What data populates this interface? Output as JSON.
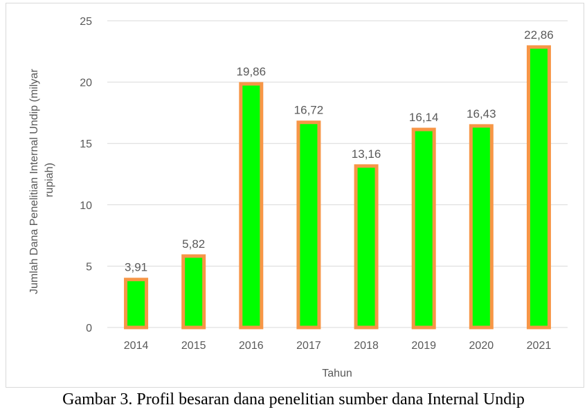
{
  "chart_data": {
    "type": "bar",
    "categories": [
      "2014",
      "2015",
      "2016",
      "2017",
      "2018",
      "2019",
      "2020",
      "2021"
    ],
    "values": [
      3.91,
      5.82,
      19.86,
      16.72,
      13.16,
      16.14,
      16.43,
      22.86
    ],
    "data_labels": [
      "3,91",
      "5,82",
      "19,86",
      "16,72",
      "13,16",
      "16,14",
      "16,43",
      "22,86"
    ],
    "xlabel": "Tahun",
    "ylabel": "Jumlah Dana Penelitian Internal Undip (milyar rupiah)",
    "ylabel_lines": [
      "Jumlah Dana Penelitian Internal Undip (milyar",
      "rupiah)"
    ],
    "ylim": [
      0,
      25
    ],
    "yticks": [
      0,
      5,
      10,
      15,
      20,
      25
    ],
    "grid": true,
    "bar_fill": "#00ff00",
    "bar_edge": "#f79646",
    "text_color": "#595959",
    "grid_color": "#d9d9d9"
  },
  "caption": "Gambar 3. Profil besaran dana penelitian sumber dana Internal Undip"
}
